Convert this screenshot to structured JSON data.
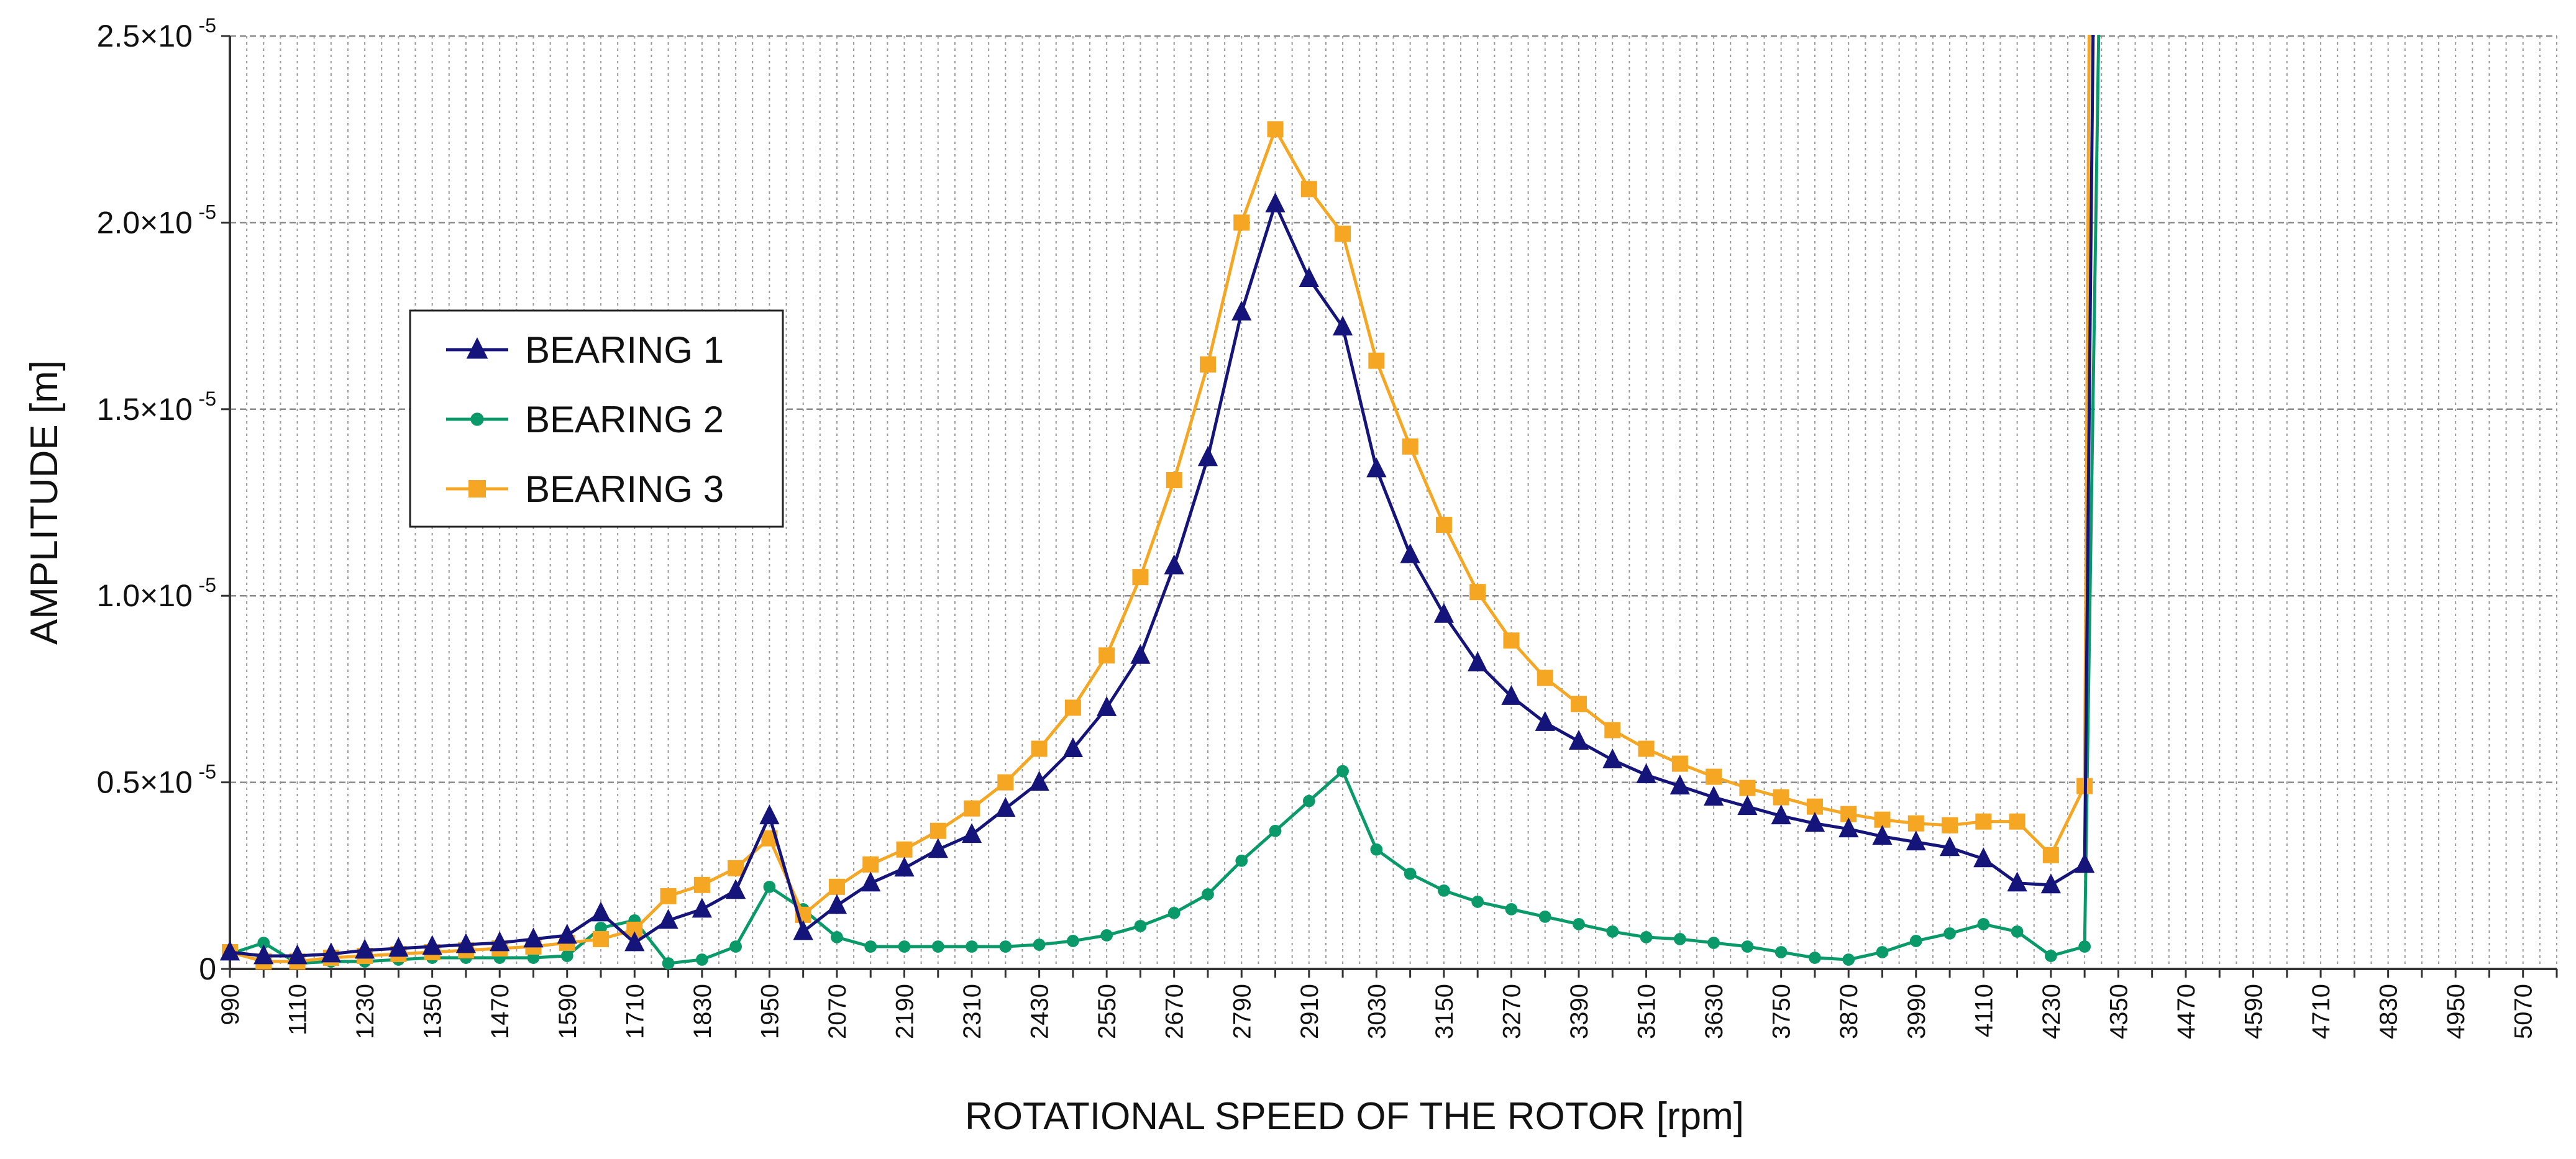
{
  "chart_data": {
    "type": "line",
    "title": "",
    "xlabel": "ROTATIONAL SPEED OF THE ROTOR [rpm]",
    "ylabel": "AMPLITUDE [m]",
    "xlim": [
      990,
      5130
    ],
    "ylim": [
      0,
      2.5e-05
    ],
    "grid": true,
    "legend_position": "upper-left",
    "x_tick_labels": [
      "990",
      "1110",
      "1230",
      "1350",
      "1470",
      "1590",
      "1710",
      "1830",
      "1950",
      "2070",
      "2190",
      "2310",
      "2430",
      "2550",
      "2670",
      "2790",
      "2910",
      "3030",
      "3150",
      "3270",
      "3390",
      "3510",
      "3630",
      "3750",
      "3870",
      "3990",
      "4110",
      "4230",
      "4350",
      "4470",
      "4590",
      "4710",
      "4830",
      "4950",
      "5070"
    ],
    "y_ticks": [
      {
        "value": 0,
        "label": "0"
      },
      {
        "value": 5e-06,
        "label": "0.5×10"
      },
      {
        "value": 1e-05,
        "label": "1.0×10"
      },
      {
        "value": 1.5e-05,
        "label": "1.5×10"
      },
      {
        "value": 2e-05,
        "label": "2.0×10"
      },
      {
        "value": 2.5e-05,
        "label": "2.5×10"
      }
    ],
    "y_exponent": "-5",
    "series": [
      {
        "name": "BEARING 1",
        "color": "#14147a",
        "marker": "triangle",
        "points": [
          [
            990,
            4.5e-07
          ],
          [
            1050,
            3.5e-07
          ],
          [
            1110,
            3.5e-07
          ],
          [
            1170,
            4e-07
          ],
          [
            1230,
            5e-07
          ],
          [
            1290,
            5.5e-07
          ],
          [
            1350,
            6e-07
          ],
          [
            1410,
            6.5e-07
          ],
          [
            1470,
            7e-07
          ],
          [
            1530,
            8e-07
          ],
          [
            1590,
            9e-07
          ],
          [
            1650,
            1.5e-06
          ],
          [
            1710,
            7e-07
          ],
          [
            1770,
            1.3e-06
          ],
          [
            1830,
            1.6e-06
          ],
          [
            1890,
            2.1e-06
          ],
          [
            1950,
            4.1e-06
          ],
          [
            2010,
            1e-06
          ],
          [
            2070,
            1.7e-06
          ],
          [
            2130,
            2.3e-06
          ],
          [
            2190,
            2.7e-06
          ],
          [
            2250,
            3.2e-06
          ],
          [
            2310,
            3.6e-06
          ],
          [
            2370,
            4.3e-06
          ],
          [
            2430,
            5e-06
          ],
          [
            2490,
            5.9e-06
          ],
          [
            2550,
            7e-06
          ],
          [
            2610,
            8.4e-06
          ],
          [
            2670,
            1.08e-05
          ],
          [
            2730,
            1.37e-05
          ],
          [
            2790,
            1.76e-05
          ],
          [
            2850,
            2.05e-05
          ],
          [
            2910,
            1.85e-05
          ],
          [
            2970,
            1.72e-05
          ],
          [
            3030,
            1.34e-05
          ],
          [
            3090,
            1.11e-05
          ],
          [
            3150,
            9.5e-06
          ],
          [
            3210,
            8.2e-06
          ],
          [
            3270,
            7.3e-06
          ],
          [
            3330,
            6.6e-06
          ],
          [
            3390,
            6.1e-06
          ],
          [
            3450,
            5.6e-06
          ],
          [
            3510,
            5.2e-06
          ],
          [
            3570,
            4.9e-06
          ],
          [
            3630,
            4.6e-06
          ],
          [
            3690,
            4.35e-06
          ],
          [
            3750,
            4.1e-06
          ],
          [
            3810,
            3.9e-06
          ],
          [
            3870,
            3.75e-06
          ],
          [
            3930,
            3.55e-06
          ],
          [
            3990,
            3.4e-06
          ],
          [
            4050,
            3.25e-06
          ],
          [
            4110,
            2.95e-06
          ],
          [
            4170,
            2.3e-06
          ],
          [
            4230,
            2.25e-06
          ],
          [
            4290,
            2.8e-06
          ],
          [
            4305,
            2.5e-05
          ]
        ]
      },
      {
        "name": "BEARING 2",
        "color": "#0a9a6a",
        "marker": "circle",
        "points": [
          [
            990,
            4e-07
          ],
          [
            1050,
            7e-07
          ],
          [
            1110,
            1.5e-07
          ],
          [
            1170,
            2e-07
          ],
          [
            1230,
            2e-07
          ],
          [
            1290,
            2.5e-07
          ],
          [
            1350,
            3e-07
          ],
          [
            1410,
            3e-07
          ],
          [
            1470,
            3e-07
          ],
          [
            1530,
            3e-07
          ],
          [
            1590,
            3.5e-07
          ],
          [
            1650,
            1.1e-06
          ],
          [
            1710,
            1.3e-06
          ],
          [
            1770,
            1.5e-07
          ],
          [
            1830,
            2.5e-07
          ],
          [
            1890,
            6e-07
          ],
          [
            1950,
            2.2e-06
          ],
          [
            2010,
            1.6e-06
          ],
          [
            2070,
            8.5e-07
          ],
          [
            2130,
            6e-07
          ],
          [
            2190,
            6e-07
          ],
          [
            2250,
            6e-07
          ],
          [
            2310,
            6e-07
          ],
          [
            2370,
            6e-07
          ],
          [
            2430,
            6.5e-07
          ],
          [
            2490,
            7.5e-07
          ],
          [
            2550,
            9e-07
          ],
          [
            2610,
            1.15e-06
          ],
          [
            2670,
            1.5e-06
          ],
          [
            2730,
            2e-06
          ],
          [
            2790,
            2.9e-06
          ],
          [
            2850,
            3.7e-06
          ],
          [
            2910,
            4.5e-06
          ],
          [
            2970,
            5.3e-06
          ],
          [
            3030,
            3.2e-06
          ],
          [
            3090,
            2.55e-06
          ],
          [
            3150,
            2.1e-06
          ],
          [
            3210,
            1.8e-06
          ],
          [
            3270,
            1.6e-06
          ],
          [
            3330,
            1.4e-06
          ],
          [
            3390,
            1.2e-06
          ],
          [
            3450,
            1e-06
          ],
          [
            3510,
            8.5e-07
          ],
          [
            3570,
            8e-07
          ],
          [
            3630,
            7e-07
          ],
          [
            3690,
            6e-07
          ],
          [
            3750,
            4.5e-07
          ],
          [
            3810,
            3e-07
          ],
          [
            3870,
            2.5e-07
          ],
          [
            3930,
            4.5e-07
          ],
          [
            3990,
            7.5e-07
          ],
          [
            4050,
            9.5e-07
          ],
          [
            4110,
            1.2e-06
          ],
          [
            4170,
            1e-06
          ],
          [
            4230,
            3.5e-07
          ],
          [
            4290,
            6e-07
          ],
          [
            4315,
            2.5e-05
          ]
        ]
      },
      {
        "name": "BEARING 3",
        "color": "#f5a623",
        "marker": "square",
        "points": [
          [
            990,
            4.5e-07
          ],
          [
            1050,
            2e-07
          ],
          [
            1110,
            2e-07
          ],
          [
            1170,
            3e-07
          ],
          [
            1230,
            3.5e-07
          ],
          [
            1290,
            4e-07
          ],
          [
            1350,
            4.5e-07
          ],
          [
            1410,
            5e-07
          ],
          [
            1470,
            5.5e-07
          ],
          [
            1530,
            6e-07
          ],
          [
            1590,
            7e-07
          ],
          [
            1650,
            8e-07
          ],
          [
            1710,
            1.05e-06
          ],
          [
            1770,
            1.95e-06
          ],
          [
            1830,
            2.25e-06
          ],
          [
            1890,
            2.7e-06
          ],
          [
            1950,
            3.5e-06
          ],
          [
            2010,
            1.45e-06
          ],
          [
            2070,
            2.2e-06
          ],
          [
            2130,
            2.8e-06
          ],
          [
            2190,
            3.2e-06
          ],
          [
            2250,
            3.7e-06
          ],
          [
            2310,
            4.3e-06
          ],
          [
            2370,
            5e-06
          ],
          [
            2430,
            5.9e-06
          ],
          [
            2490,
            7e-06
          ],
          [
            2550,
            8.4e-06
          ],
          [
            2610,
            1.05e-05
          ],
          [
            2670,
            1.31e-05
          ],
          [
            2730,
            1.62e-05
          ],
          [
            2790,
            2e-05
          ],
          [
            2850,
            2.25e-05
          ],
          [
            2910,
            2.09e-05
          ],
          [
            2970,
            1.97e-05
          ],
          [
            3030,
            1.63e-05
          ],
          [
            3090,
            1.4e-05
          ],
          [
            3150,
            1.19e-05
          ],
          [
            3210,
            1.01e-05
          ],
          [
            3270,
            8.8e-06
          ],
          [
            3330,
            7.8e-06
          ],
          [
            3390,
            7.1e-06
          ],
          [
            3450,
            6.4e-06
          ],
          [
            3510,
            5.9e-06
          ],
          [
            3570,
            5.5e-06
          ],
          [
            3630,
            5.15e-06
          ],
          [
            3690,
            4.85e-06
          ],
          [
            3750,
            4.6e-06
          ],
          [
            3810,
            4.35e-06
          ],
          [
            3870,
            4.15e-06
          ],
          [
            3930,
            4e-06
          ],
          [
            3990,
            3.9e-06
          ],
          [
            4050,
            3.85e-06
          ],
          [
            4110,
            3.95e-06
          ],
          [
            4170,
            3.95e-06
          ],
          [
            4230,
            3.05e-06
          ],
          [
            4290,
            4.9e-06
          ],
          [
            4298,
            2.5e-05
          ]
        ]
      }
    ]
  }
}
